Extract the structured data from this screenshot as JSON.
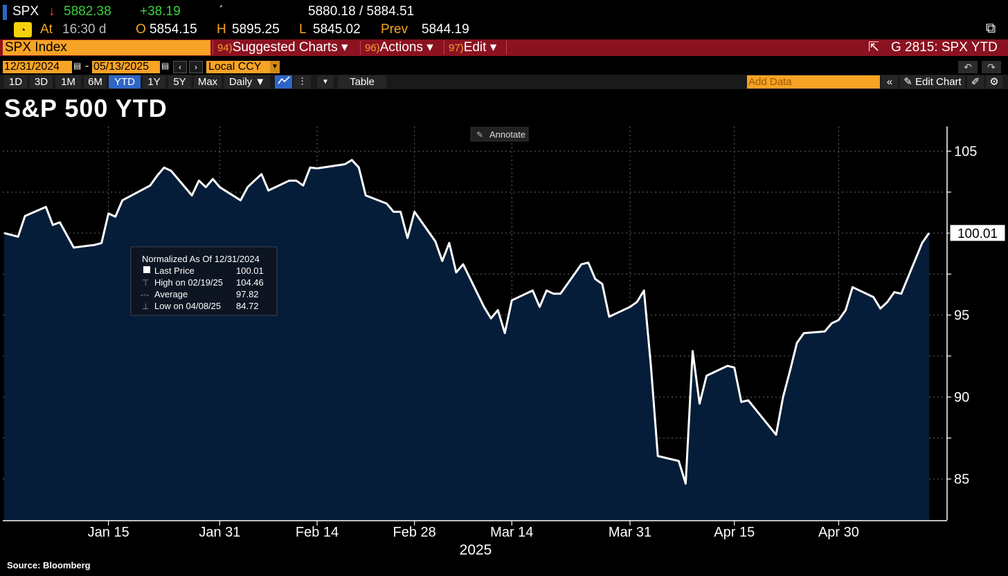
{
  "quote": {
    "ticker": "SPX",
    "arrow": "↓",
    "last": "5882.38",
    "change": "+38.19",
    "tick": "ˊ",
    "bid_ask": "5880.18 / 5884.51",
    "at_label": "At",
    "time": "16:30 d",
    "open_label": "O",
    "open": "5854.15",
    "high_label": "H",
    "high": "5895.25",
    "low_label": "L",
    "low": "5845.02",
    "prev_label": "Prev",
    "prev": "5844.19",
    "gauge_icon": "speedometer-icon"
  },
  "menubar": {
    "security": "SPX Index",
    "items": [
      {
        "num": "94)",
        "label": "Suggested Charts ▾"
      },
      {
        "num": "96)",
        "label": "Actions ▾"
      },
      {
        "num": "97)",
        "label": "Edit ▾"
      }
    ],
    "right_label": "G 2815: SPX YTD",
    "export_icon": "export-icon"
  },
  "datebar": {
    "start": "12/31/2024",
    "dash": "-",
    "end": "05/13/2025",
    "prev_btn": "‹",
    "next_btn": "›",
    "currency": "Local CCY",
    "undo": "↶",
    "redo": "↷"
  },
  "toolbar": {
    "periods": [
      "1D",
      "3D",
      "1M",
      "6M",
      "YTD",
      "1Y",
      "5Y",
      "Max"
    ],
    "active_period": "YTD",
    "frequency": "Daily ▼",
    "table_label": "Table",
    "add_data_placeholder": "Add Data",
    "collapse": "«",
    "edit_chart": "Edit Chart",
    "colors": {
      "accent": "#f7a325",
      "menu": "#8b1220",
      "active": "#2f66c5"
    }
  },
  "annotate_label": "Annotate",
  "legend": {
    "title": "Normalized As Of 12/31/2024",
    "rows": [
      {
        "label": "Last Price",
        "value": "100.01"
      },
      {
        "label": "High on 02/19/25",
        "value": "104.46"
      },
      {
        "label": "Average",
        "value": "97.82"
      },
      {
        "label": "Low on 04/08/25",
        "value": "84.72"
      }
    ]
  },
  "source": "Source:  Bloomberg",
  "chart_data": {
    "type": "area",
    "title": "S&P 500 YTD",
    "xlabel": "2025",
    "ylabel": "",
    "ylim": [
      82.5,
      106.5
    ],
    "yticks": [
      85,
      90,
      95,
      100,
      105
    ],
    "xlim": [
      "2024-12-31",
      "2025-05-13"
    ],
    "xticks": [
      {
        "date": "2025-01-15",
        "label": "Jan 15"
      },
      {
        "date": "2025-01-31",
        "label": "Jan 31"
      },
      {
        "date": "2025-02-14",
        "label": "Feb 14"
      },
      {
        "date": "2025-02-28",
        "label": "Feb 28"
      },
      {
        "date": "2025-03-14",
        "label": "Mar 14"
      },
      {
        "date": "2025-03-31",
        "label": "Mar 31"
      },
      {
        "date": "2025-04-15",
        "label": "Apr 15"
      },
      {
        "date": "2025-04-30",
        "label": "Apr 30"
      }
    ],
    "last_value_label": "100.01",
    "grid": true,
    "legend_position": "left-middle",
    "line_color": "#ffffff",
    "fill_color": "#061d3a",
    "series": [
      {
        "x": [
          "2024-12-31",
          "2025-01-02",
          "2025-01-03",
          "2025-01-06",
          "2025-01-07",
          "2025-01-08",
          "2025-01-10",
          "2025-01-13",
          "2025-01-14",
          "2025-01-15",
          "2025-01-16",
          "2025-01-17",
          "2025-01-21",
          "2025-01-22",
          "2025-01-23",
          "2025-01-24",
          "2025-01-27",
          "2025-01-28",
          "2025-01-29",
          "2025-01-30",
          "2025-01-31",
          "2025-02-03",
          "2025-02-04",
          "2025-02-05",
          "2025-02-06",
          "2025-02-07",
          "2025-02-10",
          "2025-02-11",
          "2025-02-12",
          "2025-02-13",
          "2025-02-14",
          "2025-02-18",
          "2025-02-19",
          "2025-02-20",
          "2025-02-21",
          "2025-02-24",
          "2025-02-25",
          "2025-02-26",
          "2025-02-27",
          "2025-02-28",
          "2025-03-03",
          "2025-03-04",
          "2025-03-05",
          "2025-03-06",
          "2025-03-07",
          "2025-03-10",
          "2025-03-11",
          "2025-03-12",
          "2025-03-13",
          "2025-03-14",
          "2025-03-17",
          "2025-03-18",
          "2025-03-19",
          "2025-03-20",
          "2025-03-21",
          "2025-03-24",
          "2025-03-25",
          "2025-03-26",
          "2025-03-27",
          "2025-03-28",
          "2025-03-31",
          "2025-04-01",
          "2025-04-02",
          "2025-04-03",
          "2025-04-04",
          "2025-04-07",
          "2025-04-08",
          "2025-04-09",
          "2025-04-10",
          "2025-04-11",
          "2025-04-14",
          "2025-04-15",
          "2025-04-16",
          "2025-04-17",
          "2025-04-21",
          "2025-04-22",
          "2025-04-23",
          "2025-04-24",
          "2025-04-25",
          "2025-04-28",
          "2025-04-29",
          "2025-04-30",
          "2025-05-01",
          "2025-05-02",
          "2025-05-05",
          "2025-05-06",
          "2025-05-07",
          "2025-05-08",
          "2025-05-09",
          "2025-05-12",
          "2025-05-13"
        ],
        "values": [
          100.0,
          99.78,
          101.04,
          101.6,
          100.5,
          100.66,
          99.12,
          99.28,
          99.39,
          101.2,
          101.0,
          102.0,
          102.9,
          103.5,
          104.0,
          103.8,
          102.3,
          103.2,
          102.8,
          103.3,
          102.8,
          102.0,
          102.8,
          103.2,
          103.6,
          102.6,
          103.2,
          103.2,
          102.9,
          104.0,
          103.95,
          104.2,
          104.46,
          104.0,
          102.3,
          101.8,
          101.3,
          101.3,
          99.7,
          101.3,
          99.5,
          98.3,
          99.4,
          97.6,
          98.1,
          95.5,
          94.8,
          95.3,
          93.9,
          95.9,
          96.5,
          95.5,
          96.5,
          96.3,
          96.3,
          98.1,
          98.2,
          97.2,
          96.9,
          94.9,
          95.5,
          95.8,
          96.5,
          91.9,
          86.4,
          86.1,
          84.72,
          92.8,
          89.6,
          91.3,
          91.9,
          91.8,
          89.7,
          89.8,
          87.7,
          90.0,
          91.6,
          93.3,
          93.9,
          94.0,
          94.5,
          94.7,
          95.3,
          96.7,
          96.1,
          95.4,
          95.8,
          96.4,
          96.3,
          99.4,
          100.01
        ]
      }
    ]
  }
}
